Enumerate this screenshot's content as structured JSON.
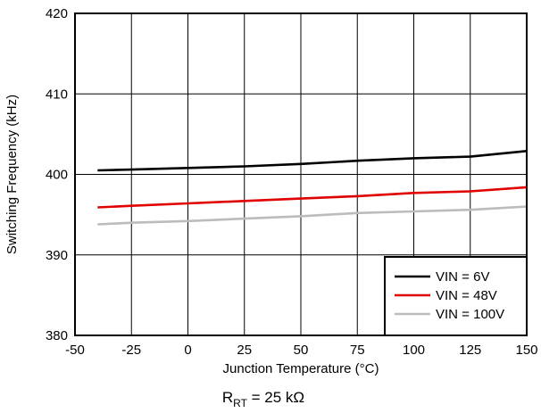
{
  "chart_data": {
    "type": "line",
    "xlabel": "Junction Temperature (°C)",
    "ylabel": "Switching Frequency (kHz)",
    "xlim": [
      -50,
      150
    ],
    "ylim": [
      380,
      420
    ],
    "xticks": [
      -50,
      -25,
      0,
      25,
      50,
      75,
      100,
      125,
      150
    ],
    "yticks": [
      380,
      390,
      400,
      410,
      420
    ],
    "grid": true,
    "legend_position": "bottom-right",
    "x": [
      -40,
      -25,
      0,
      25,
      50,
      75,
      100,
      125,
      150
    ],
    "series": [
      {
        "name": "VIN = 6V",
        "color": "#000000",
        "values": [
          400.5,
          400.6,
          400.8,
          401.0,
          401.3,
          401.7,
          402.0,
          402.2,
          402.9
        ]
      },
      {
        "name": "VIN = 48V",
        "color": "#e00000",
        "values": [
          395.9,
          396.1,
          396.4,
          396.7,
          397.0,
          397.3,
          397.7,
          397.9,
          398.4
        ]
      },
      {
        "name": "VIN = 100V",
        "color": "#bcbcbc",
        "values": [
          393.8,
          394.0,
          394.2,
          394.5,
          394.8,
          395.2,
          395.4,
          395.6,
          396.0
        ]
      }
    ]
  },
  "note": {
    "base": "R",
    "sub": "RT",
    "rest": " = 25 kΩ"
  }
}
